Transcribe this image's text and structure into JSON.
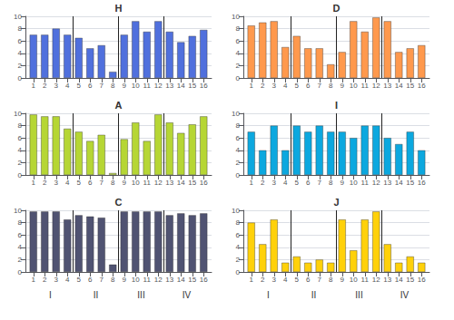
{
  "chart_data": [
    {
      "type": "bar",
      "title": "H",
      "x": [
        1,
        2,
        3,
        4,
        5,
        6,
        7,
        8,
        9,
        10,
        11,
        12,
        13,
        14,
        15,
        16
      ],
      "values": [
        7.0,
        7.0,
        8.0,
        7.0,
        6.5,
        4.8,
        5.3,
        1.0,
        7.0,
        9.2,
        7.5,
        9.2,
        7.5,
        5.8,
        6.8,
        7.8
      ],
      "xlim": [
        0.3,
        16.7
      ],
      "xticks": [
        1,
        2,
        3,
        4,
        5,
        6,
        7,
        8,
        9,
        10,
        11,
        12,
        13,
        14,
        15,
        16
      ],
      "ylim": [
        0,
        10
      ],
      "yticks": [
        0,
        2,
        4,
        6,
        8,
        10
      ],
      "grid": true,
      "section_lines": [
        4.5,
        8.5,
        12.5
      ]
    },
    {
      "type": "bar",
      "title": "A",
      "x": [
        1,
        2,
        3,
        4,
        5,
        6,
        7,
        8,
        9,
        10,
        11,
        12,
        13,
        14,
        15,
        16
      ],
      "values": [
        9.8,
        9.5,
        9.5,
        7.5,
        7.0,
        5.5,
        6.5,
        0.3,
        5.8,
        8.5,
        5.5,
        9.8,
        8.5,
        6.8,
        8.2,
        9.5
      ],
      "xlim": [
        0.3,
        16.7
      ],
      "xticks": [
        1,
        2,
        3,
        4,
        5,
        6,
        7,
        8,
        9,
        10,
        11,
        12,
        13,
        14,
        15,
        16
      ],
      "ylim": [
        0,
        10
      ],
      "yticks": [
        0,
        2,
        4,
        6,
        8,
        10
      ],
      "grid": true,
      "section_lines": [
        4.5,
        8.5,
        12.5
      ]
    },
    {
      "type": "bar",
      "title": "C",
      "x": [
        1,
        2,
        3,
        4,
        5,
        6,
        7,
        8,
        9,
        10,
        11,
        12,
        13,
        14,
        15,
        16
      ],
      "values": [
        9.8,
        9.8,
        9.8,
        8.5,
        9.2,
        9.0,
        8.8,
        1.2,
        9.8,
        9.8,
        9.8,
        9.8,
        9.2,
        9.5,
        9.2,
        9.5
      ],
      "xlim": [
        0.3,
        16.7
      ],
      "xticks": [
        1,
        2,
        3,
        4,
        5,
        6,
        7,
        8,
        9,
        10,
        11,
        12,
        13,
        14,
        15,
        16
      ],
      "ylim": [
        0,
        10
      ],
      "yticks": [
        0,
        2,
        4,
        6,
        8,
        10
      ],
      "grid": true,
      "section_lines": [
        4.5,
        8.5,
        12.5
      ],
      "annotations": [
        {
          "text": "I",
          "x": 2.5
        },
        {
          "text": "II",
          "x": 6.5
        },
        {
          "text": "III",
          "x": 10.5
        },
        {
          "text": "IV",
          "x": 14.5
        }
      ]
    },
    {
      "type": "bar",
      "title": "D",
      "x": [
        1,
        2,
        3,
        4,
        5,
        6,
        7,
        8,
        9,
        10,
        11,
        12,
        13,
        14,
        15,
        16
      ],
      "values": [
        8.5,
        9.0,
        9.2,
        5.0,
        6.8,
        4.8,
        4.8,
        2.2,
        4.2,
        9.2,
        7.5,
        9.8,
        9.2,
        4.2,
        4.8,
        5.3
      ],
      "xlim": [
        0.3,
        16.7
      ],
      "xticks": [
        1,
        2,
        3,
        4,
        5,
        6,
        7,
        8,
        9,
        10,
        11,
        12,
        13,
        14,
        15,
        16
      ],
      "ylim": [
        0,
        10
      ],
      "yticks": [
        0,
        2,
        4,
        6,
        8,
        10
      ],
      "grid": true,
      "section_lines": [
        4.5,
        8.5,
        12.5
      ]
    },
    {
      "type": "bar",
      "title": "I",
      "x": [
        1,
        2,
        3,
        4,
        5,
        6,
        7,
        8,
        9,
        10,
        11,
        12,
        13,
        14,
        15,
        16
      ],
      "values": [
        7.0,
        4.0,
        8.0,
        4.0,
        8.0,
        7.0,
        8.0,
        7.0,
        7.0,
        6.0,
        8.0,
        8.0,
        6.0,
        5.0,
        7.0,
        4.0
      ],
      "xlim": [
        0.3,
        16.7
      ],
      "xticks": [
        1,
        2,
        3,
        4,
        5,
        6,
        7,
        8,
        9,
        10,
        11,
        12,
        13,
        14,
        15,
        16
      ],
      "ylim": [
        0,
        10
      ],
      "yticks": [
        0,
        2,
        4,
        6,
        8,
        10
      ],
      "grid": true,
      "section_lines": [
        4.5,
        8.5,
        12.5
      ]
    },
    {
      "type": "bar",
      "title": "J",
      "x": [
        1,
        2,
        3,
        4,
        5,
        6,
        7,
        8,
        9,
        10,
        11,
        12,
        13,
        14,
        15,
        16
      ],
      "values": [
        8.0,
        4.5,
        8.5,
        1.5,
        2.5,
        1.5,
        2.0,
        1.5,
        8.5,
        3.5,
        8.5,
        9.8,
        4.5,
        1.5,
        2.5,
        1.5
      ],
      "xlim": [
        0.3,
        16.7
      ],
      "xticks": [
        1,
        2,
        3,
        4,
        5,
        6,
        7,
        8,
        9,
        10,
        11,
        12,
        13,
        14,
        15,
        16
      ],
      "ylim": [
        0,
        10
      ],
      "yticks": [
        0,
        2,
        4,
        6,
        8,
        10
      ],
      "grid": true,
      "section_lines": [
        4.5,
        8.5,
        12.5
      ],
      "annotations": [
        {
          "text": "I",
          "x": 2.5
        },
        {
          "text": "II",
          "x": 6.5
        },
        {
          "text": "III",
          "x": 10.5
        },
        {
          "text": "IV",
          "x": 14.5
        }
      ]
    }
  ]
}
